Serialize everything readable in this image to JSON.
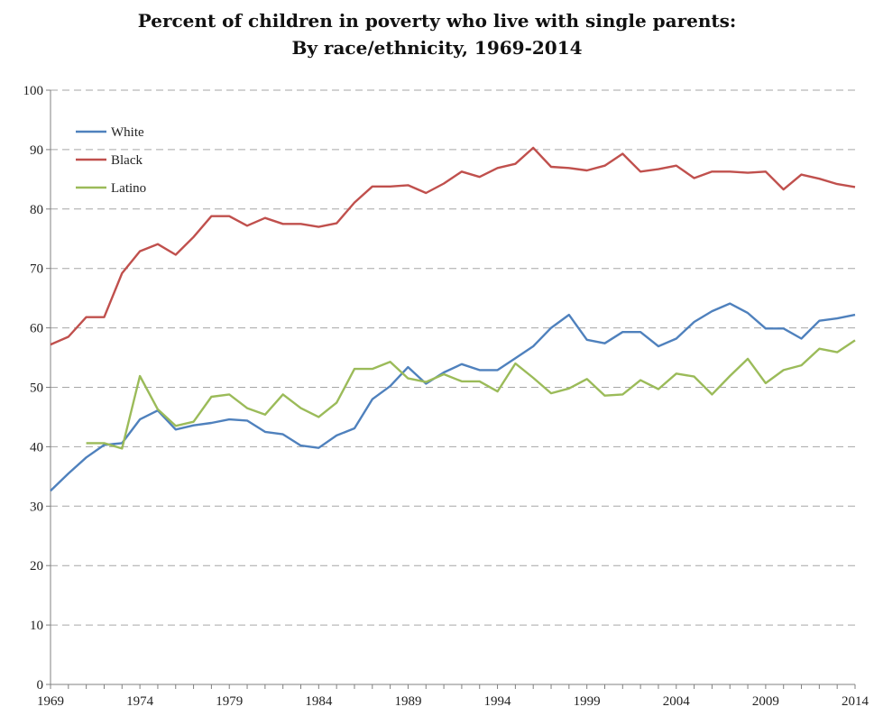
{
  "chart_data": {
    "type": "line",
    "title": "Percent of children in poverty who live with single parents:",
    "subtitle": "By race/ethnicity, 1969-2014",
    "xlabel": "",
    "ylabel": "",
    "xlim": [
      1969,
      2014
    ],
    "ylim": [
      0,
      100
    ],
    "y_ticks": [
      0,
      10,
      20,
      30,
      40,
      50,
      60,
      70,
      80,
      90,
      100
    ],
    "x_ticks": [
      1969,
      1974,
      1979,
      1984,
      1989,
      1994,
      1999,
      2004,
      2009,
      2014
    ],
    "grid": "horizontal dashed",
    "legend_position": "top-left",
    "series": [
      {
        "name": "White",
        "color": "#4F81BD",
        "points": [
          [
            1969,
            32.6
          ],
          [
            1970,
            35.5
          ],
          [
            1971,
            38.2
          ],
          [
            1972,
            40.3
          ],
          [
            1973,
            40.6
          ],
          [
            1974,
            44.6
          ],
          [
            1975,
            46.1
          ],
          [
            1976,
            42.9
          ],
          [
            1977,
            43.6
          ],
          [
            1978,
            44.0
          ],
          [
            1979,
            44.6
          ],
          [
            1980,
            44.4
          ],
          [
            1981,
            42.5
          ],
          [
            1982,
            42.1
          ],
          [
            1983,
            40.2
          ],
          [
            1984,
            39.8
          ],
          [
            1985,
            41.9
          ],
          [
            1986,
            43.1
          ],
          [
            1987,
            48.0
          ],
          [
            1988,
            50.2
          ],
          [
            1989,
            53.4
          ],
          [
            1990,
            50.6
          ],
          [
            1991,
            52.5
          ],
          [
            1992,
            53.9
          ],
          [
            1993,
            52.9
          ],
          [
            1994,
            52.9
          ],
          [
            1995,
            54.9
          ],
          [
            1996,
            56.9
          ],
          [
            1997,
            60.0
          ],
          [
            1998,
            62.2
          ],
          [
            1999,
            58.0
          ],
          [
            2000,
            57.4
          ],
          [
            2001,
            59.3
          ],
          [
            2002,
            59.3
          ],
          [
            2003,
            56.9
          ],
          [
            2004,
            58.2
          ],
          [
            2005,
            61.0
          ],
          [
            2006,
            62.8
          ],
          [
            2007,
            64.1
          ],
          [
            2008,
            62.5
          ],
          [
            2009,
            59.9
          ],
          [
            2010,
            59.9
          ],
          [
            2011,
            58.2
          ],
          [
            2012,
            61.2
          ],
          [
            2013,
            61.6
          ],
          [
            2014,
            62.2
          ]
        ]
      },
      {
        "name": "Black",
        "color": "#C0504D",
        "points": [
          [
            1969,
            57.2
          ],
          [
            1970,
            58.5
          ],
          [
            1971,
            61.8
          ],
          [
            1972,
            61.8
          ],
          [
            1973,
            69.2
          ],
          [
            1974,
            72.9
          ],
          [
            1975,
            74.1
          ],
          [
            1976,
            72.3
          ],
          [
            1977,
            75.3
          ],
          [
            1978,
            78.8
          ],
          [
            1979,
            78.8
          ],
          [
            1980,
            77.2
          ],
          [
            1981,
            78.5
          ],
          [
            1982,
            77.5
          ],
          [
            1983,
            77.5
          ],
          [
            1984,
            77.0
          ],
          [
            1985,
            77.6
          ],
          [
            1986,
            81.1
          ],
          [
            1987,
            83.8
          ],
          [
            1988,
            83.8
          ],
          [
            1989,
            84.0
          ],
          [
            1990,
            82.7
          ],
          [
            1991,
            84.3
          ],
          [
            1992,
            86.3
          ],
          [
            1993,
            85.4
          ],
          [
            1994,
            86.9
          ],
          [
            1995,
            87.6
          ],
          [
            1996,
            90.3
          ],
          [
            1997,
            87.1
          ],
          [
            1998,
            86.9
          ],
          [
            1999,
            86.5
          ],
          [
            2000,
            87.3
          ],
          [
            2001,
            89.3
          ],
          [
            2002,
            86.3
          ],
          [
            2003,
            86.7
          ],
          [
            2004,
            87.3
          ],
          [
            2005,
            85.2
          ],
          [
            2006,
            86.3
          ],
          [
            2007,
            86.3
          ],
          [
            2008,
            86.1
          ],
          [
            2009,
            86.3
          ],
          [
            2010,
            83.3
          ],
          [
            2011,
            85.8
          ],
          [
            2012,
            85.1
          ],
          [
            2013,
            84.2
          ],
          [
            2014,
            83.7
          ]
        ]
      },
      {
        "name": "Latino",
        "color": "#9BBB59",
        "points": [
          [
            1971,
            40.6
          ],
          [
            1972,
            40.6
          ],
          [
            1973,
            39.7
          ],
          [
            1974,
            51.9
          ],
          [
            1975,
            46.3
          ],
          [
            1976,
            43.5
          ],
          [
            1977,
            44.2
          ],
          [
            1978,
            48.4
          ],
          [
            1979,
            48.8
          ],
          [
            1980,
            46.5
          ],
          [
            1981,
            45.4
          ],
          [
            1982,
            48.8
          ],
          [
            1983,
            46.5
          ],
          [
            1984,
            45.0
          ],
          [
            1985,
            47.4
          ],
          [
            1986,
            53.1
          ],
          [
            1987,
            53.1
          ],
          [
            1988,
            54.3
          ],
          [
            1989,
            51.5
          ],
          [
            1990,
            50.9
          ],
          [
            1991,
            52.2
          ],
          [
            1992,
            51.0
          ],
          [
            1993,
            51.0
          ],
          [
            1994,
            49.3
          ],
          [
            1995,
            54.0
          ],
          [
            1996,
            51.6
          ],
          [
            1997,
            49.0
          ],
          [
            1998,
            49.8
          ],
          [
            1999,
            51.4
          ],
          [
            2000,
            48.6
          ],
          [
            2001,
            48.8
          ],
          [
            2002,
            51.2
          ],
          [
            2003,
            49.7
          ],
          [
            2004,
            52.3
          ],
          [
            2005,
            51.8
          ],
          [
            2006,
            48.8
          ],
          [
            2007,
            51.9
          ],
          [
            2008,
            54.8
          ],
          [
            2009,
            50.7
          ],
          [
            2010,
            52.9
          ],
          [
            2011,
            53.7
          ],
          [
            2012,
            56.5
          ],
          [
            2013,
            55.9
          ],
          [
            2014,
            57.9
          ]
        ]
      }
    ]
  }
}
